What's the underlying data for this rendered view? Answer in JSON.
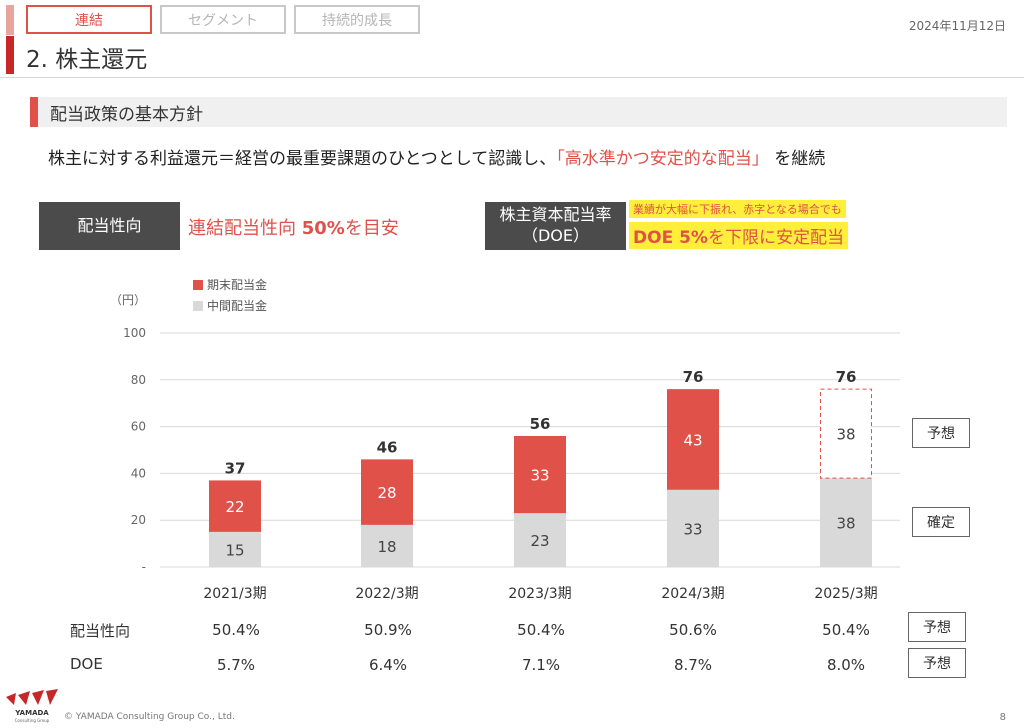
{
  "tabs": [
    {
      "label": "連結",
      "active": true
    },
    {
      "label": "セグメント",
      "active": false
    },
    {
      "label": "持続的成長",
      "active": false
    }
  ],
  "date": "2024年11月12日",
  "page_title": "2. 株主還元",
  "section_title": "配当政策の基本方針",
  "lead": {
    "before": "株主に対する利益還元＝経営の最重要課題のひとつとして認識し、",
    "highlight": "「高水準かつ安定的な配当」",
    "after": "を継続"
  },
  "policy_left": {
    "label": "配当性向",
    "text_pre": "連結配当性向",
    "text_bold": "50%",
    "text_post": "を目安"
  },
  "policy_right": {
    "label_line1": "株主資本配当率",
    "label_line2": "（DOE）",
    "note": "業績が大幅に下振れ、赤字となる場合でも",
    "text_bold": "DOE 5%",
    "text_post": "を下限に安定配当"
  },
  "chart_data": {
    "type": "bar",
    "stacked": true,
    "y_unit_label": "（円）",
    "ylim": [
      0,
      100
    ],
    "yticks": [
      {
        "value": 0,
        "label": "-"
      },
      {
        "value": 20,
        "label": "20"
      },
      {
        "value": 40,
        "label": "40"
      },
      {
        "value": 60,
        "label": "60"
      },
      {
        "value": 80,
        "label": "80"
      },
      {
        "value": 100,
        "label": "100"
      }
    ],
    "grid": true,
    "legend_position": "top-left",
    "categories": [
      "2021/3期",
      "2022/3期",
      "2023/3期",
      "2024/3期",
      "2025/3期"
    ],
    "series": [
      {
        "name": "中間配当金",
        "color": "#d9d9d9",
        "values": [
          15,
          18,
          23,
          33,
          38
        ]
      },
      {
        "name": "期末配当金",
        "color": "#e0514a",
        "values": [
          22,
          28,
          33,
          43,
          38
        ]
      }
    ],
    "forecast_last_final": true,
    "totals": [
      37,
      46,
      56,
      76,
      76
    ],
    "tag_forecast": "予想",
    "tag_confirmed": "確定"
  },
  "table": {
    "rows": [
      {
        "label": "配当性向",
        "values": [
          "50.4%",
          "50.9%",
          "50.4%",
          "50.6%",
          "50.4%"
        ],
        "tag": "予想"
      },
      {
        "label": "DOE",
        "values": [
          "5.7%",
          "6.4%",
          "7.1%",
          "8.7%",
          "8.0%"
        ],
        "tag": "予想"
      }
    ]
  },
  "footer": {
    "logo_text_1": "YAMADA",
    "logo_text_2": "Consulting Group",
    "copyright": "© YAMADA Consulting Group Co., Ltd.",
    "page_number": "8"
  },
  "colors": {
    "accent": "#e0514a",
    "dark_box": "#4b4b4b",
    "highlight": "#ffef3a",
    "interim": "#d9d9d9"
  }
}
